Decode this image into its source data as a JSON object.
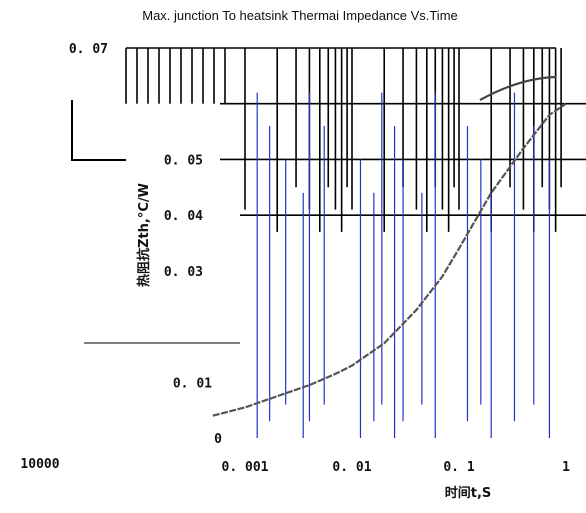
{
  "chart_data": {
    "type": "line",
    "title": "Max. junction To heatsink Thermai Impedance Vs.Time",
    "xlabel": "时间t,S",
    "ylabel": "热阻抗Zth,°C/W",
    "x_scale": "log",
    "xlim": [
      0.001,
      1
    ],
    "ylim": [
      0,
      0.07
    ],
    "x_ticks": [
      {
        "value": 0.001,
        "label": "0. 001"
      },
      {
        "value": 0.01,
        "label": "0. 01"
      },
      {
        "value": 0.1,
        "label": "0. 1"
      },
      {
        "value": 1,
        "label": "1"
      }
    ],
    "x_extra_tick": "10000",
    "y_ticks": [
      {
        "value": 0.07,
        "label": "0. 07"
      },
      {
        "value": 0.05,
        "label": "0. 05"
      },
      {
        "value": 0.04,
        "label": "0. 04"
      },
      {
        "value": 0.03,
        "label": "0. 03"
      },
      {
        "value": 0.01,
        "label": "0. 01"
      },
      {
        "value": 0,
        "label": "0"
      }
    ],
    "grid": true,
    "series": [
      {
        "x": [
          0.0005,
          0.001,
          0.002,
          0.004,
          0.007,
          0.01,
          0.02,
          0.04,
          0.07,
          0.1,
          0.2,
          0.4,
          0.7,
          1
        ],
        "y": [
          0.004,
          0.0055,
          0.0075,
          0.0095,
          0.0115,
          0.013,
          0.017,
          0.023,
          0.029,
          0.034,
          0.044,
          0.052,
          0.058,
          0.06
        ]
      }
    ],
    "colors": {
      "curve": "#555555",
      "grid": "#000000",
      "accent_lines": "#2233cc"
    }
  }
}
